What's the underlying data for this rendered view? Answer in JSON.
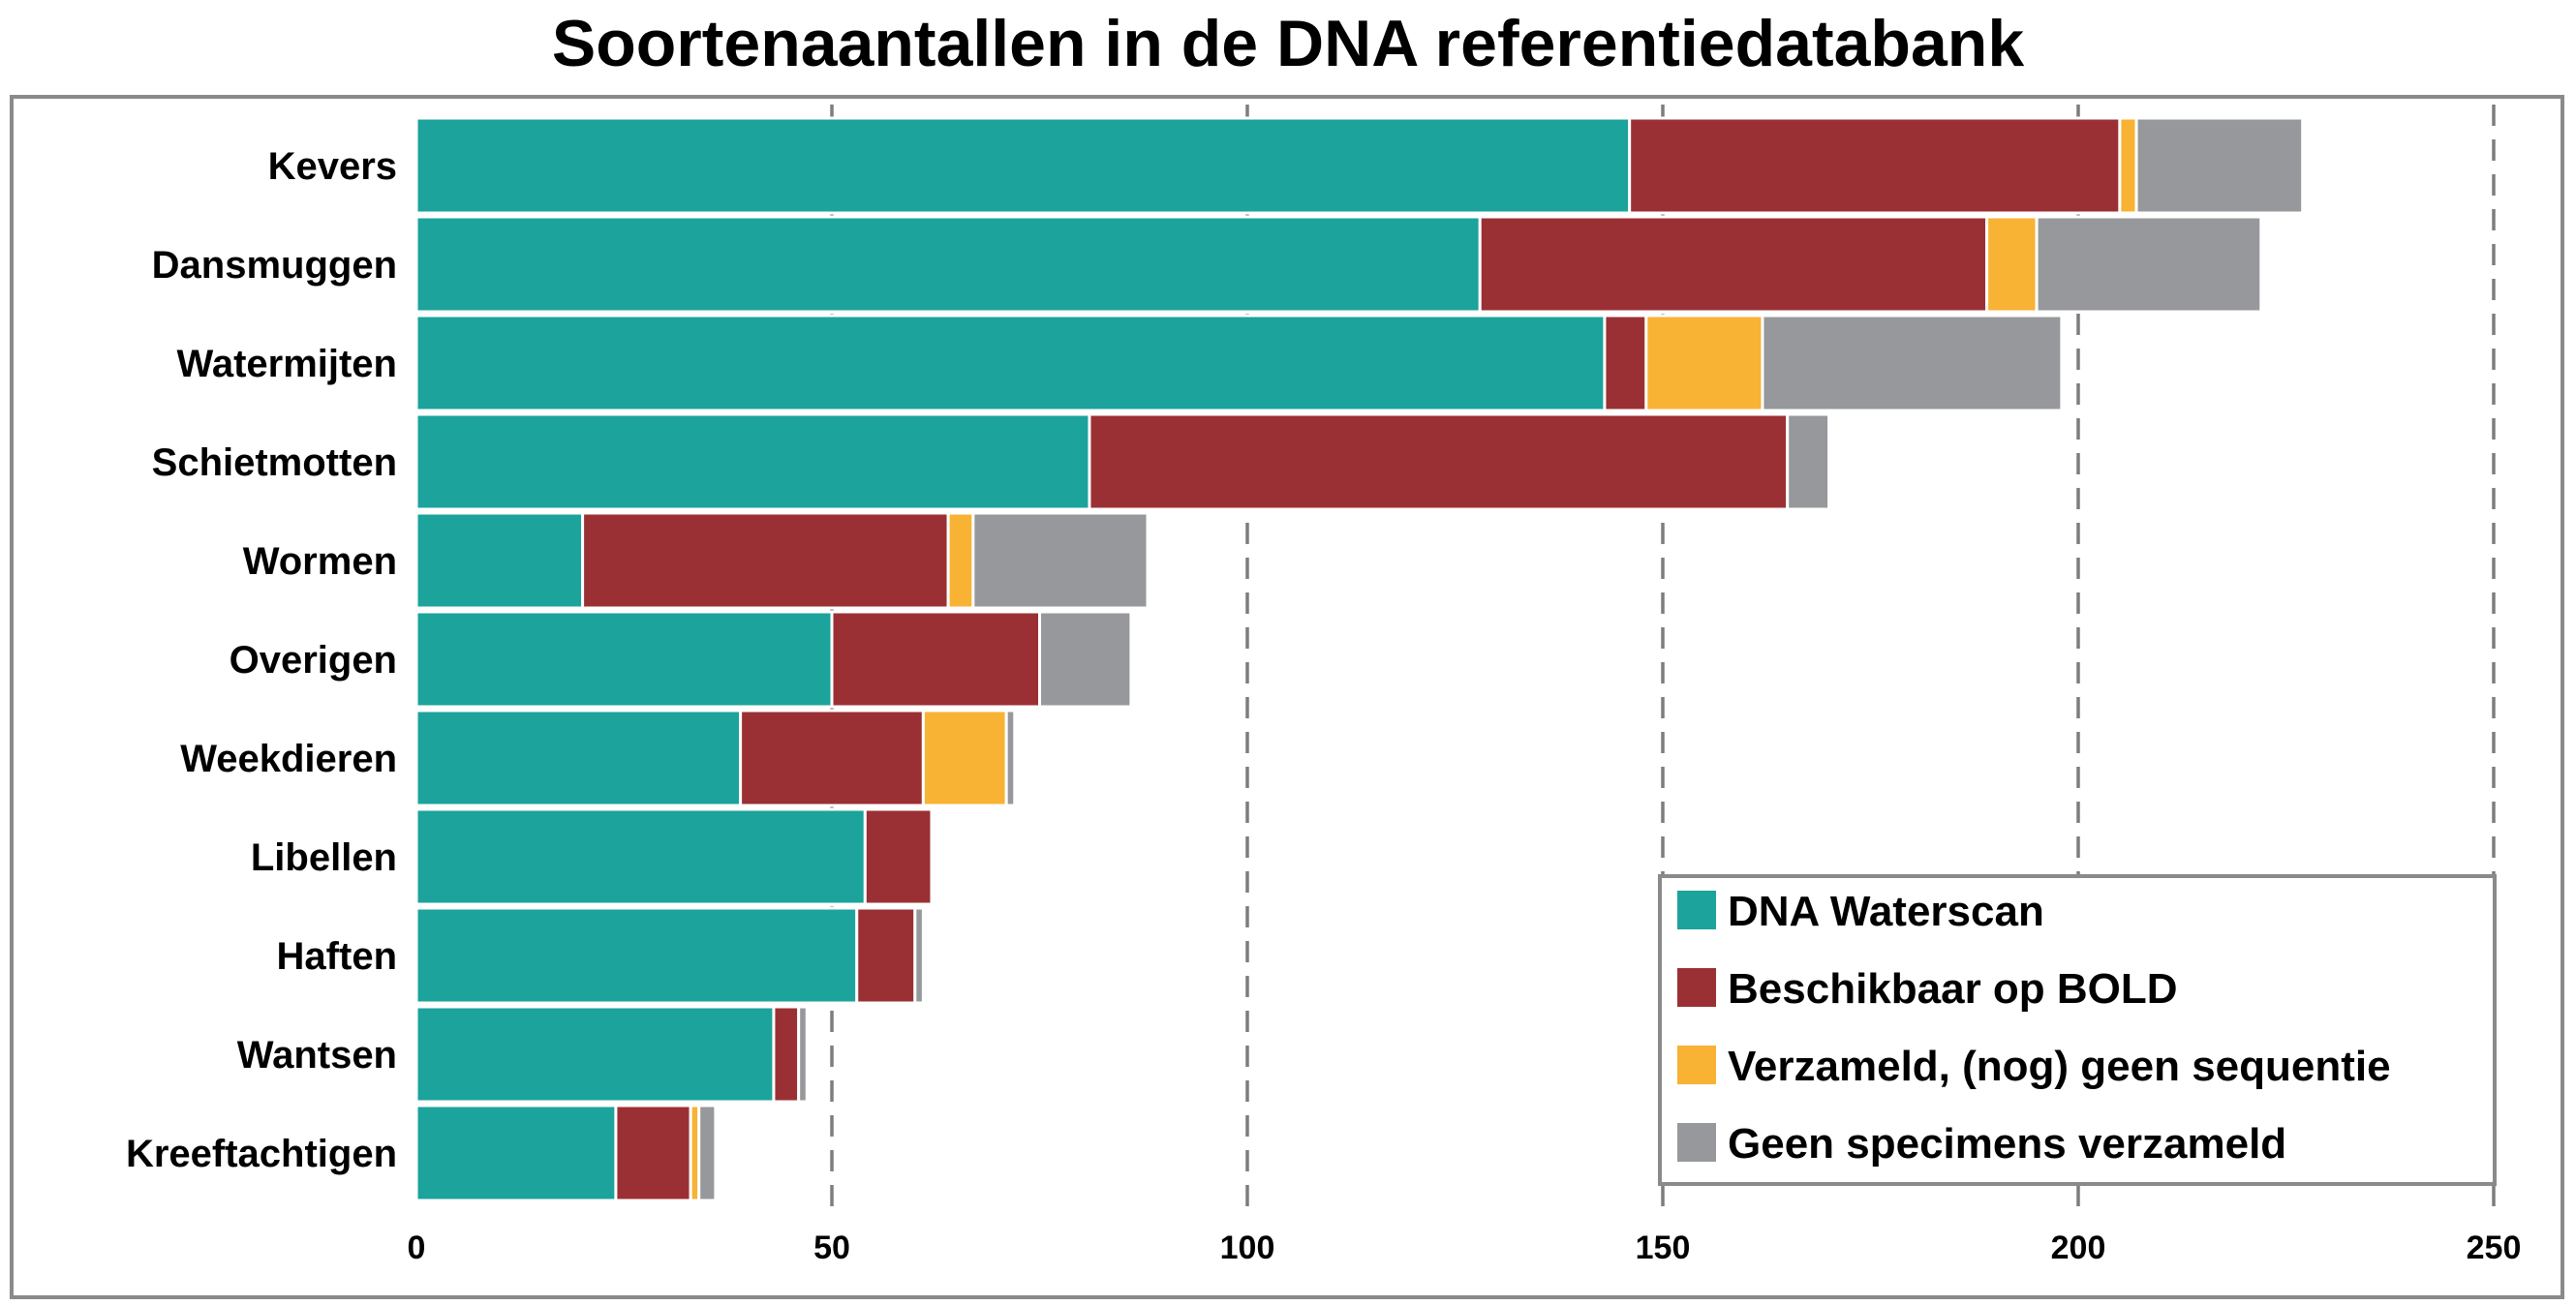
{
  "chart_data": {
    "type": "bar",
    "orientation": "horizontal",
    "stacked": true,
    "title": "Soortenaantallen in de DNA referentiedatabank",
    "xlabel": "",
    "ylabel": "",
    "xlim": [
      0,
      250
    ],
    "x_ticks": [
      0,
      50,
      100,
      150,
      200,
      250
    ],
    "grid": "vertical dashed",
    "legend_position": "bottom-right",
    "categories": [
      "Kevers",
      "Dansmuggen",
      "Watermijten",
      "Schietmotten",
      "Wormen",
      "Overigen",
      "Weekdieren",
      "Libellen",
      "Haften",
      "Wantsen",
      "Kreeftachtigen"
    ],
    "series": [
      {
        "name": "DNA Waterscan",
        "color": "#1ba39c",
        "values": [
          146,
          128,
          143,
          81,
          20,
          50,
          39,
          54,
          53,
          43,
          24
        ]
      },
      {
        "name": "Beschikbaar op BOLD",
        "color": "#9b3034",
        "values": [
          59,
          61,
          5,
          84,
          44,
          25,
          22,
          8,
          7,
          3,
          9
        ]
      },
      {
        "name": "Verzameld, (nog) geen sequentie",
        "color": "#f8b234",
        "values": [
          2,
          6,
          14,
          0,
          3,
          0,
          10,
          0,
          0,
          0,
          1
        ]
      },
      {
        "name": "Geen specimens verzameld",
        "color": "#97989b",
        "values": [
          20,
          27,
          36,
          5,
          21,
          11,
          1,
          0,
          1,
          1,
          2
        ]
      }
    ]
  }
}
